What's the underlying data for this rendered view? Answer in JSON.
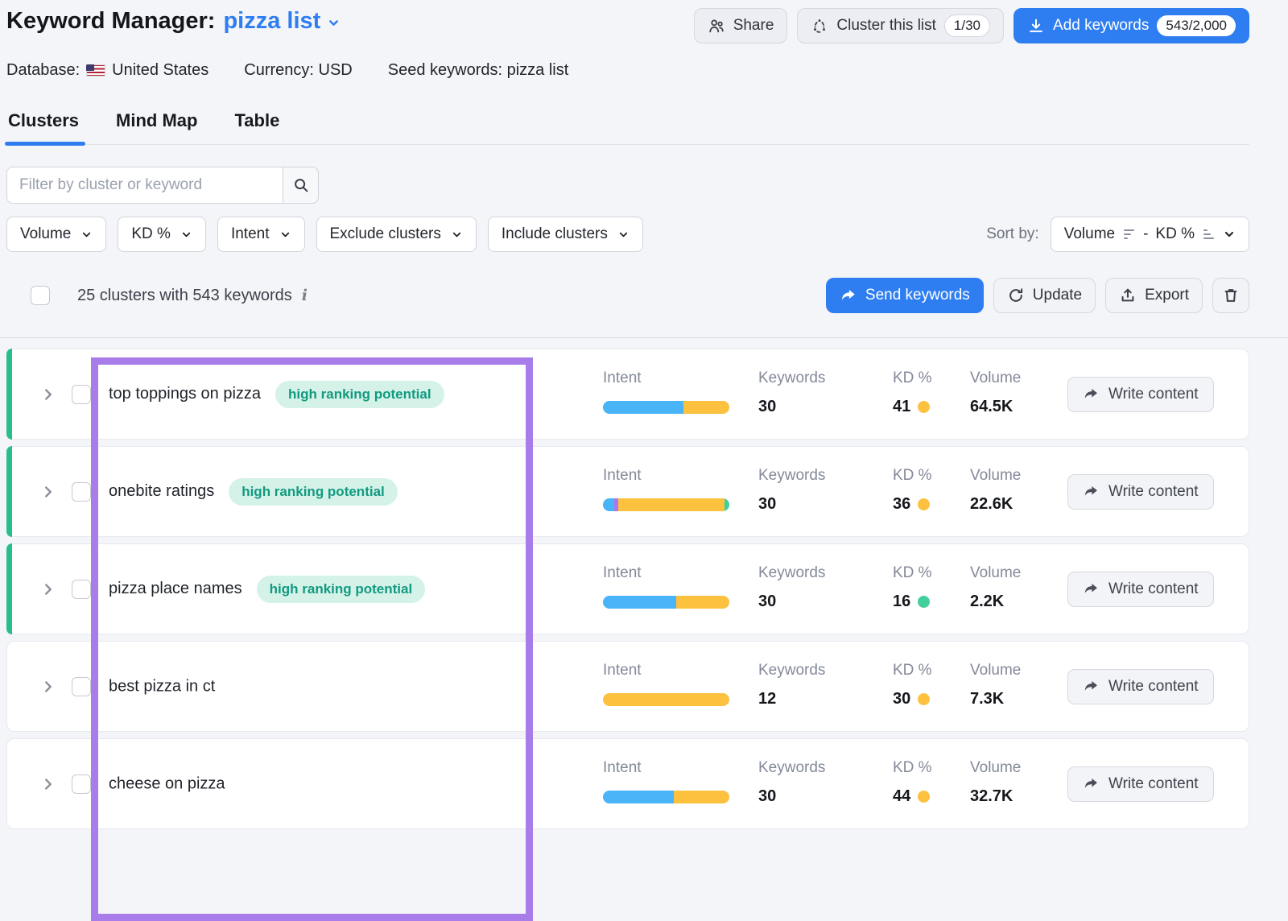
{
  "header": {
    "title": "Keyword Manager:",
    "list_name": "pizza list",
    "buttons": {
      "share": "Share",
      "cluster": "Cluster this list",
      "cluster_badge": "1/30",
      "add_keywords": "Add keywords",
      "add_keywords_badge": "543/2,000"
    }
  },
  "meta": {
    "database_label": "Database:",
    "database_value": "United States",
    "currency": "Currency: USD",
    "seed_keywords": "Seed keywords: pizza list"
  },
  "tabs": [
    {
      "label": "Clusters",
      "active": true
    },
    {
      "label": "Mind Map",
      "active": false
    },
    {
      "label": "Table",
      "active": false
    }
  ],
  "filter_bar": {
    "search_placeholder": "Filter by cluster or keyword",
    "dropdowns": [
      "Volume",
      "KD %",
      "Intent",
      "Exclude clusters",
      "Include clusters"
    ],
    "sort_label": "Sort by:",
    "sort_primary": "Volume",
    "sort_separator": "-",
    "sort_secondary": "KD %"
  },
  "toolbar": {
    "summary": "25 clusters with 543 keywords",
    "send_keywords": "Send keywords",
    "update": "Update",
    "export": "Export"
  },
  "table": {
    "columns": {
      "intent": "Intent",
      "keywords": "Keywords",
      "kd": "KD %",
      "volume": "Volume"
    },
    "write_content": "Write content",
    "badge_label": "high ranking potential",
    "rows": [
      {
        "name": "top toppings on pizza",
        "high_ranking": true,
        "accent": true,
        "intent_segments": [
          {
            "color": "#49b4f8",
            "pct": 64
          },
          {
            "color": "#fcc13e",
            "pct": 36
          }
        ],
        "keywords": "30",
        "kd": "41",
        "kd_color": "#fcc13e",
        "volume": "64.5K"
      },
      {
        "name": "onebite ratings",
        "high_ranking": true,
        "accent": true,
        "intent_segments": [
          {
            "color": "#49b4f8",
            "pct": 9
          },
          {
            "color": "#ab76ee",
            "pct": 3
          },
          {
            "color": "#fcc13e",
            "pct": 84
          },
          {
            "color": "#3fd0a0",
            "pct": 4
          }
        ],
        "keywords": "30",
        "kd": "36",
        "kd_color": "#fcc13e",
        "volume": "22.6K"
      },
      {
        "name": "pizza place names",
        "high_ranking": true,
        "accent": true,
        "intent_segments": [
          {
            "color": "#49b4f8",
            "pct": 58
          },
          {
            "color": "#fcc13e",
            "pct": 42
          }
        ],
        "keywords": "30",
        "kd": "16",
        "kd_color": "#43cf9b",
        "volume": "2.2K"
      },
      {
        "name": "best pizza in ct",
        "high_ranking": false,
        "accent": false,
        "intent_segments": [
          {
            "color": "#fcc13e",
            "pct": 100
          }
        ],
        "keywords": "12",
        "kd": "30",
        "kd_color": "#fcc13e",
        "volume": "7.3K"
      },
      {
        "name": "cheese on pizza",
        "high_ranking": false,
        "accent": false,
        "intent_segments": [
          {
            "color": "#49b4f8",
            "pct": 56
          },
          {
            "color": "#fcc13e",
            "pct": 44
          }
        ],
        "keywords": "30",
        "kd": "44",
        "kd_color": "#fcc13e",
        "volume": "32.7K"
      }
    ]
  },
  "colors": {
    "primary_blue": "#2e7ef2",
    "accent_green": "#27be8d",
    "badge_bg": "#d5f2e8",
    "badge_text": "#119a80",
    "kd_yellow": "#fcc13e",
    "kd_green": "#43cf9b",
    "intent_blue": "#49b4f8",
    "intent_yellow": "#fcc13e",
    "intent_purple": "#ab76ee",
    "intent_green": "#3fd0a0",
    "highlight_purple": "#a87de9"
  }
}
